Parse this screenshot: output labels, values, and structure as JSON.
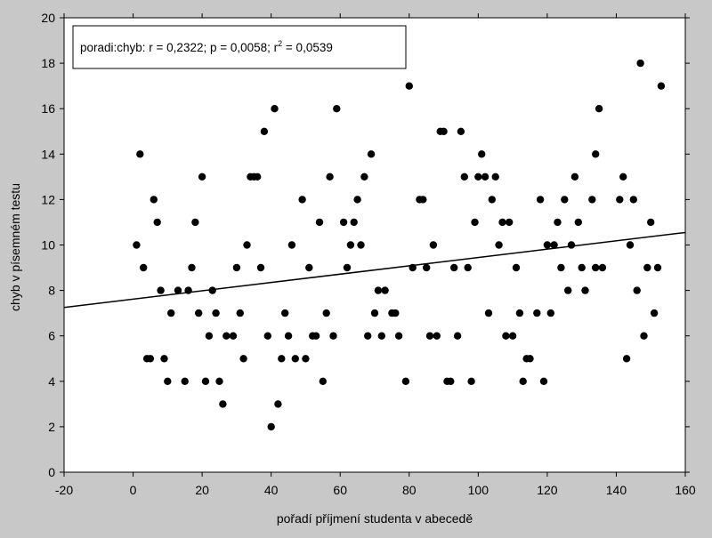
{
  "chart_data": {
    "type": "scatter",
    "xlabel": "pořadí příjmení studenta v abecedě",
    "ylabel": "chyb v písemném testu",
    "xlim": [
      -20,
      160
    ],
    "ylim": [
      0,
      20
    ],
    "xticks": [
      "-20",
      "0",
      "20",
      "40",
      "60",
      "80",
      "100",
      "120",
      "140",
      "160"
    ],
    "yticks": [
      "0",
      "2",
      "4",
      "6",
      "8",
      "10",
      "12",
      "14",
      "16",
      "18",
      "20"
    ],
    "annotation": {
      "prefix": "poradi:chyb:   r = 0,2322; p = 0,0058; r",
      "sup": "2",
      "suffix": " = 0,0539"
    },
    "fit_line": {
      "x": [
        -20,
        160
      ],
      "y": [
        7.25,
        10.55
      ]
    },
    "grid": false,
    "colors": {
      "background": "#c8c8c8",
      "plot_area": "#ffffff",
      "points": "#000000",
      "line": "#000000"
    },
    "points": [
      [
        1,
        10
      ],
      [
        2,
        14
      ],
      [
        3,
        9
      ],
      [
        4,
        5
      ],
      [
        5,
        5
      ],
      [
        6,
        12
      ],
      [
        7,
        11
      ],
      [
        8,
        8
      ],
      [
        9,
        5
      ],
      [
        10,
        4
      ],
      [
        11,
        7
      ],
      [
        13,
        8
      ],
      [
        15,
        4
      ],
      [
        16,
        8
      ],
      [
        17,
        9
      ],
      [
        18,
        11
      ],
      [
        19,
        7
      ],
      [
        20,
        13
      ],
      [
        21,
        4
      ],
      [
        22,
        6
      ],
      [
        23,
        8
      ],
      [
        24,
        7
      ],
      [
        25,
        4
      ],
      [
        26,
        3
      ],
      [
        27,
        6
      ],
      [
        29,
        6
      ],
      [
        30,
        9
      ],
      [
        31,
        7
      ],
      [
        32,
        5
      ],
      [
        33,
        10
      ],
      [
        34,
        13
      ],
      [
        35,
        13
      ],
      [
        36,
        13
      ],
      [
        37,
        9
      ],
      [
        38,
        15
      ],
      [
        39,
        6
      ],
      [
        40,
        2
      ],
      [
        41,
        16
      ],
      [
        42,
        3
      ],
      [
        43,
        5
      ],
      [
        44,
        7
      ],
      [
        45,
        6
      ],
      [
        46,
        10
      ],
      [
        47,
        5
      ],
      [
        49,
        12
      ],
      [
        50,
        5
      ],
      [
        51,
        9
      ],
      [
        52,
        6
      ],
      [
        53,
        6
      ],
      [
        54,
        11
      ],
      [
        55,
        4
      ],
      [
        56,
        7
      ],
      [
        57,
        13
      ],
      [
        58,
        6
      ],
      [
        59,
        16
      ],
      [
        61,
        11
      ],
      [
        62,
        9
      ],
      [
        63,
        10
      ],
      [
        64,
        11
      ],
      [
        65,
        12
      ],
      [
        66,
        10
      ],
      [
        67,
        13
      ],
      [
        68,
        6
      ],
      [
        69,
        14
      ],
      [
        70,
        7
      ],
      [
        71,
        8
      ],
      [
        72,
        6
      ],
      [
        73,
        8
      ],
      [
        75,
        7
      ],
      [
        76,
        7
      ],
      [
        77,
        6
      ],
      [
        79,
        4
      ],
      [
        80,
        17
      ],
      [
        81,
        9
      ],
      [
        83,
        12
      ],
      [
        84,
        12
      ],
      [
        85,
        9
      ],
      [
        86,
        6
      ],
      [
        87,
        10
      ],
      [
        88,
        6
      ],
      [
        89,
        15
      ],
      [
        90,
        15
      ],
      [
        91,
        4
      ],
      [
        92,
        4
      ],
      [
        93,
        9
      ],
      [
        94,
        6
      ],
      [
        95,
        15
      ],
      [
        96,
        13
      ],
      [
        97,
        9
      ],
      [
        98,
        4
      ],
      [
        99,
        11
      ],
      [
        100,
        13
      ],
      [
        101,
        14
      ],
      [
        102,
        13
      ],
      [
        103,
        7
      ],
      [
        104,
        12
      ],
      [
        105,
        13
      ],
      [
        106,
        10
      ],
      [
        107,
        11
      ],
      [
        108,
        6
      ],
      [
        109,
        11
      ],
      [
        110,
        6
      ],
      [
        111,
        9
      ],
      [
        112,
        7
      ],
      [
        113,
        4
      ],
      [
        114,
        5
      ],
      [
        115,
        5
      ],
      [
        117,
        7
      ],
      [
        118,
        12
      ],
      [
        119,
        4
      ],
      [
        120,
        10
      ],
      [
        121,
        7
      ],
      [
        122,
        10
      ],
      [
        123,
        11
      ],
      [
        124,
        9
      ],
      [
        125,
        12
      ],
      [
        126,
        8
      ],
      [
        127,
        10
      ],
      [
        128,
        13
      ],
      [
        129,
        11
      ],
      [
        130,
        9
      ],
      [
        131,
        8
      ],
      [
        133,
        12
      ],
      [
        134,
        14
      ],
      [
        134,
        9
      ],
      [
        135,
        16
      ],
      [
        136,
        9
      ],
      [
        141,
        12
      ],
      [
        142,
        13
      ],
      [
        143,
        5
      ],
      [
        144,
        10
      ],
      [
        145,
        12
      ],
      [
        146,
        8
      ],
      [
        147,
        18
      ],
      [
        148,
        6
      ],
      [
        149,
        9
      ],
      [
        150,
        11
      ],
      [
        151,
        7
      ],
      [
        152,
        9
      ],
      [
        153,
        17
      ]
    ]
  }
}
